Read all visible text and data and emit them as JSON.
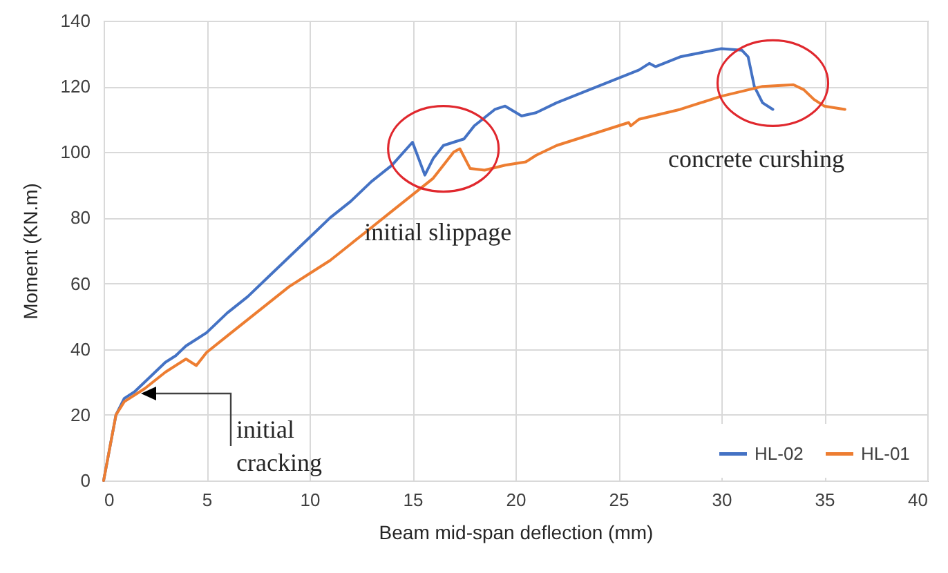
{
  "chart_data": {
    "type": "line",
    "xlabel": "Beam mid-span deflection (mm)",
    "ylabel": "Moment (KN.m)",
    "xlim": [
      0,
      40
    ],
    "xticks": [
      0,
      5,
      10,
      15,
      20,
      25,
      30,
      35,
      40
    ],
    "ylim": [
      0,
      140
    ],
    "yticks": [
      0,
      20,
      40,
      60,
      80,
      100,
      120,
      140
    ],
    "grid": true,
    "legend": "bottom right",
    "line_style": "solid",
    "marker": "none",
    "series": [
      {
        "name": "HL-02",
        "color": "#4472c4",
        "x": [
          0,
          0.3,
          0.6,
          1,
          1.5,
          2,
          2.5,
          3,
          3.5,
          4,
          4.5,
          5,
          6,
          7,
          8,
          9,
          10,
          11,
          12,
          13,
          14,
          15,
          15.6,
          16,
          16.5,
          17,
          17.5,
          18,
          19,
          19.5,
          20.3,
          21,
          22,
          24,
          26,
          26.5,
          26.8,
          28,
          30,
          31,
          31.3,
          31.6,
          32,
          32.5
        ],
        "values": [
          0,
          10,
          20,
          25,
          27,
          30,
          33,
          36,
          38,
          41,
          43,
          45,
          51,
          56,
          62,
          68,
          74,
          80,
          85,
          91,
          96,
          103,
          93,
          98,
          102,
          103,
          104,
          108,
          113,
          114,
          111,
          112,
          115,
          120,
          125,
          127,
          126,
          129,
          131.5,
          131,
          129,
          120,
          115,
          113
        ]
      },
      {
        "name": "HL-01",
        "color": "#ed7d31",
        "x": [
          0,
          0.3,
          0.6,
          1,
          2,
          3,
          4,
          4.5,
          5,
          6,
          7,
          8,
          9,
          10,
          11,
          12,
          13,
          14,
          15,
          16,
          17,
          17.3,
          17.8,
          18.5,
          19.5,
          20.5,
          21,
          22,
          24,
          25.5,
          25.6,
          26,
          28,
          30,
          32,
          33.5,
          34,
          34.5,
          35,
          36
        ],
        "values": [
          0,
          10,
          20,
          24,
          28,
          33,
          37,
          35,
          39,
          44,
          49,
          54,
          59,
          63,
          67,
          72,
          77,
          82,
          87,
          92,
          100,
          101,
          95,
          94.5,
          96,
          97,
          99,
          102,
          106,
          109,
          108,
          110,
          113,
          117,
          120,
          120.5,
          119,
          116,
          114,
          113
        ]
      }
    ],
    "annotations": [
      "initial cracking",
      {
        "text": "initial slippage",
        "x": 16.5,
        "y": 101
      },
      {
        "text": "concrete curshing",
        "x": 32.5,
        "y": 121
      }
    ]
  }
}
